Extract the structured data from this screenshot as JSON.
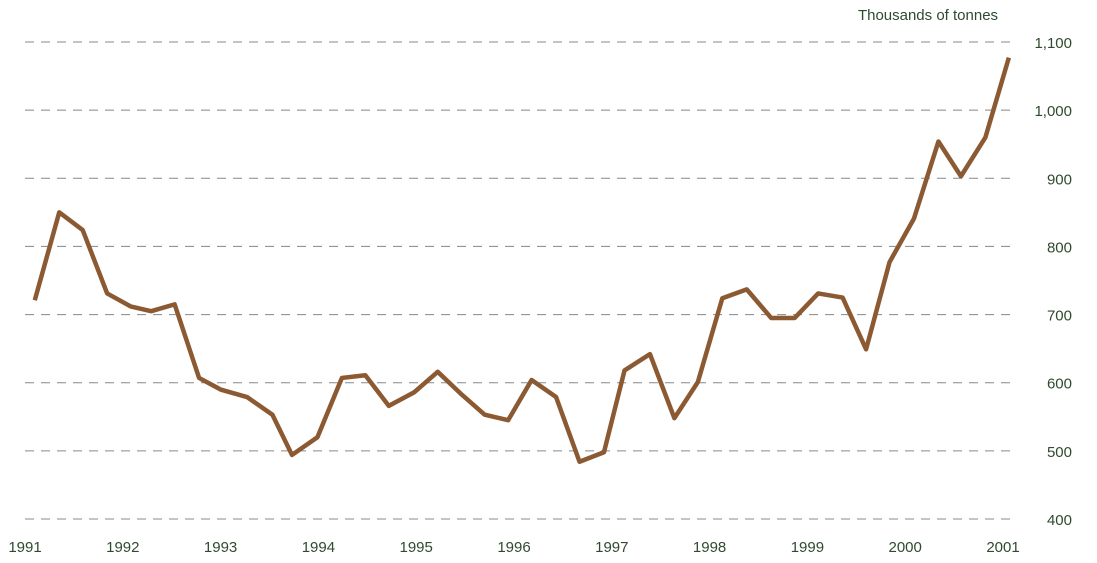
{
  "chart_data": {
    "type": "line",
    "title": "Thousands of tonnes",
    "x": [
      1991.1,
      1991.35,
      1991.59,
      1991.84,
      1992.08,
      1992.29,
      1992.53,
      1992.78,
      1993.0,
      1993.27,
      1993.53,
      1993.73,
      1993.99,
      1994.24,
      1994.48,
      1994.72,
      1994.98,
      1995.22,
      1995.47,
      1995.7,
      1995.94,
      1996.18,
      1996.43,
      1996.67,
      1996.92,
      1997.13,
      1997.39,
      1997.64,
      1997.88,
      1998.13,
      1998.38,
      1998.63,
      1998.87,
      1999.11,
      1999.36,
      1999.6,
      1999.84,
      2000.09,
      2000.34,
      2000.57,
      2000.82,
      2001.06
    ],
    "series": [
      {
        "color": "#8c5a32",
        "values": [
          721,
          850,
          824,
          731,
          712,
          705,
          715,
          607,
          590,
          579,
          553,
          494,
          520,
          607,
          611,
          566,
          586,
          616,
          582,
          553,
          545,
          604,
          579,
          484,
          498,
          618,
          642,
          548,
          601,
          724,
          737,
          695,
          695,
          731,
          725,
          649,
          777,
          841,
          954,
          903,
          960,
          1077
        ]
      }
    ],
    "xlim": [
      1991,
      2001
    ],
    "xticks": [
      1991,
      1992,
      1993,
      1994,
      1995,
      1996,
      1997,
      1998,
      1999,
      2000,
      2001
    ],
    "ylim": [
      400,
      1100
    ],
    "yticks": [
      400,
      500,
      600,
      700,
      800,
      900,
      {
        "value": 1000,
        "label": "1,000"
      },
      {
        "value": 1100,
        "label": "1,100"
      }
    ],
    "grid": true
  }
}
